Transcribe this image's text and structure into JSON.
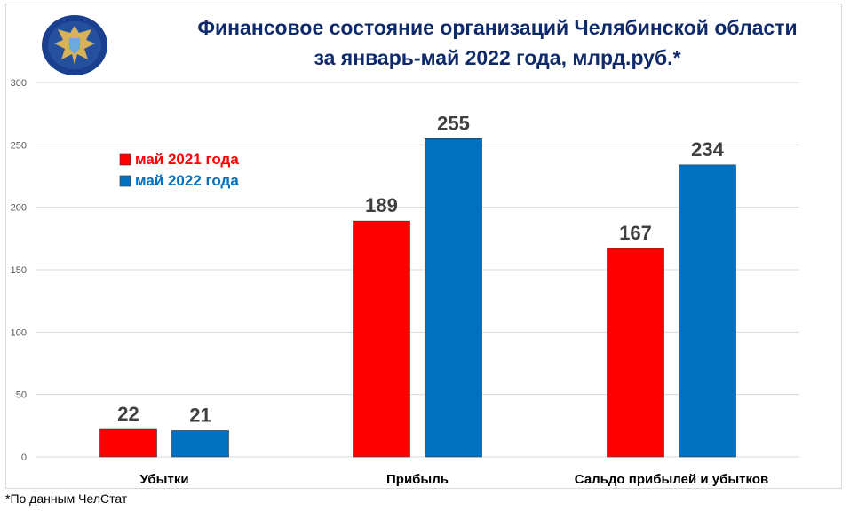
{
  "title": {
    "line1": "Финансовое состояние организаций Челябинской области",
    "line2": "за январь-май 2022 года, млрд.руб.*"
  },
  "footnote": "*По данным ЧелСтат",
  "logo": {
    "icon": "double-headed-eagle-emblem",
    "colors": {
      "ring": "#1a3f8f",
      "eagle": "#d8b25a"
    }
  },
  "chart_data": {
    "type": "bar",
    "title": "Финансовое состояние организаций Челябинской области за январь-май 2022 года, млрд.руб.*",
    "categories": [
      "Убытки",
      "Прибыль",
      "Сальдо прибылей и убытков"
    ],
    "series": [
      {
        "name": "май 2021 года",
        "color": "#ff0000",
        "values": [
          22,
          189,
          167
        ]
      },
      {
        "name": "май 2022 года",
        "color": "#0070c0",
        "values": [
          21,
          255,
          234
        ]
      }
    ],
    "ylim": [
      0,
      300
    ],
    "yticks": [
      0,
      50,
      100,
      150,
      200,
      250,
      300
    ],
    "grid": true,
    "legend_position": "top-left",
    "data_labels": true
  }
}
